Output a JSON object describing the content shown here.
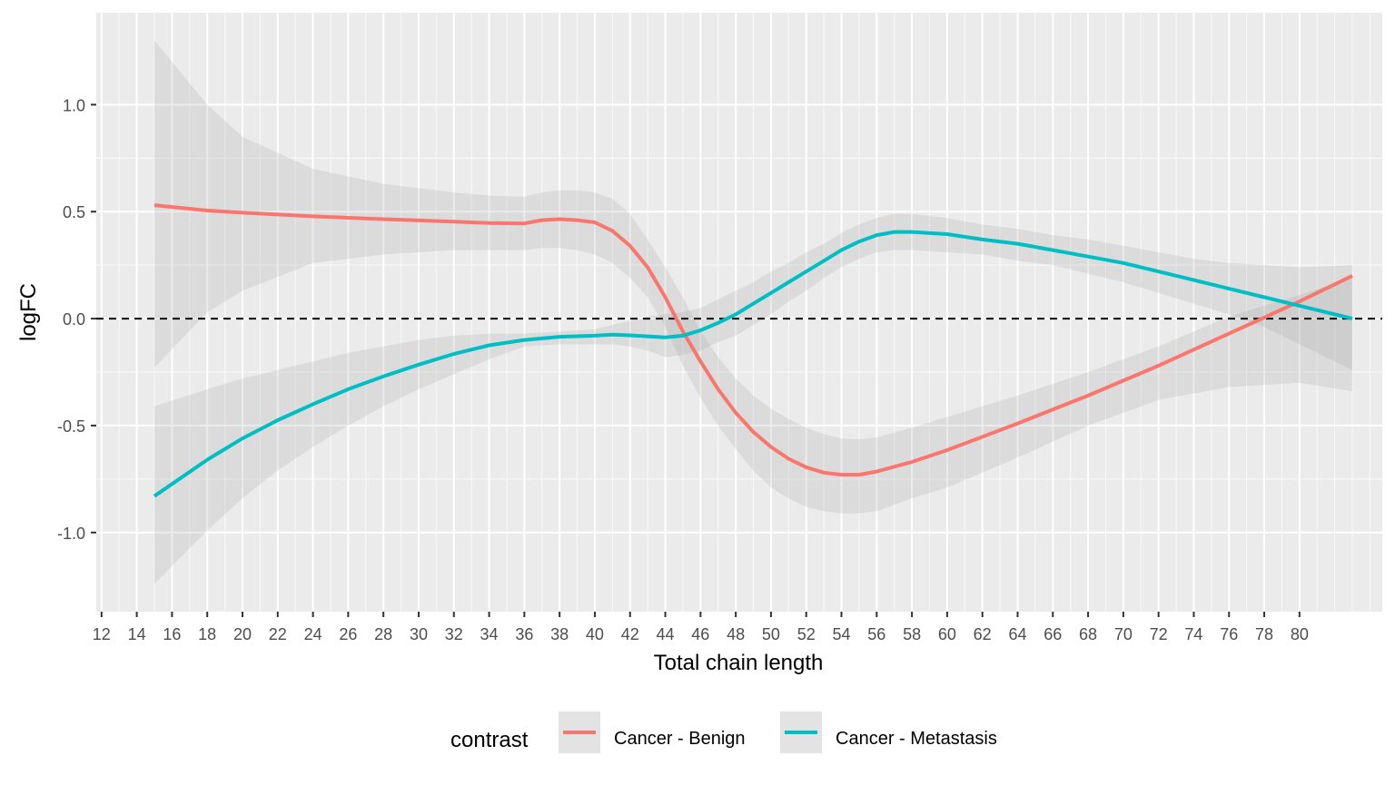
{
  "chart_data": {
    "type": "line",
    "xlabel": "Total chain length",
    "ylabel": "logFC",
    "xlim": [
      11.7,
      84.7
    ],
    "ylim": [
      -1.37,
      1.43
    ],
    "x_ticks": [
      "12",
      "14",
      "16",
      "18",
      "20",
      "22",
      "24",
      "26",
      "28",
      "30",
      "32",
      "34",
      "36",
      "38",
      "40",
      "42",
      "44",
      "46",
      "48",
      "50",
      "52",
      "54",
      "56",
      "58",
      "60",
      "62",
      "64",
      "66",
      "68",
      "70",
      "72",
      "74",
      "76",
      "78",
      "80"
    ],
    "y_ticks": [
      "1.0",
      "0.5",
      "0.0",
      "-0.5",
      "-1.0"
    ],
    "reference_line": {
      "y": 0,
      "style": "dashed"
    },
    "legend": {
      "title": "contrast",
      "position": "bottom"
    },
    "series": [
      {
        "name": "Cancer - Benign",
        "color": "#F8766D",
        "x": [
          15,
          18,
          20,
          24,
          28,
          32,
          34,
          36,
          37,
          38,
          39,
          40,
          41,
          42,
          43,
          44,
          45,
          46,
          47,
          48,
          49,
          50,
          51,
          52,
          53,
          54,
          55,
          56,
          58,
          60,
          64,
          68,
          72,
          76,
          80,
          83
        ],
        "y": [
          0.53,
          0.505,
          0.495,
          0.478,
          0.465,
          0.453,
          0.447,
          0.445,
          0.46,
          0.465,
          0.46,
          0.45,
          0.41,
          0.34,
          0.24,
          0.1,
          -0.06,
          -0.2,
          -0.33,
          -0.44,
          -0.53,
          -0.6,
          -0.655,
          -0.695,
          -0.72,
          -0.73,
          -0.73,
          -0.715,
          -0.67,
          -0.615,
          -0.49,
          -0.36,
          -0.22,
          -0.07,
          0.08,
          0.2
        ],
        "ci_upper": [
          1.3,
          1.0,
          0.85,
          0.7,
          0.63,
          0.59,
          0.575,
          0.57,
          0.59,
          0.6,
          0.6,
          0.59,
          0.56,
          0.49,
          0.37,
          0.24,
          0.1,
          -0.06,
          -0.18,
          -0.28,
          -0.36,
          -0.42,
          -0.47,
          -0.51,
          -0.54,
          -0.56,
          -0.565,
          -0.555,
          -0.51,
          -0.46,
          -0.36,
          -0.25,
          -0.13,
          0.01,
          0.11,
          0.19
        ],
        "ci_lower": [
          -0.23,
          0.03,
          0.13,
          0.26,
          0.3,
          0.32,
          0.32,
          0.32,
          0.33,
          0.33,
          0.32,
          0.3,
          0.26,
          0.19,
          0.1,
          -0.04,
          -0.22,
          -0.37,
          -0.5,
          -0.61,
          -0.71,
          -0.79,
          -0.84,
          -0.88,
          -0.9,
          -0.91,
          -0.91,
          -0.9,
          -0.84,
          -0.79,
          -0.65,
          -0.5,
          -0.38,
          -0.32,
          -0.3,
          -0.34
        ]
      },
      {
        "name": "Cancer - Metastasis",
        "color": "#00BFC4",
        "x": [
          15,
          18,
          20,
          22,
          24,
          26,
          28,
          30,
          32,
          34,
          36,
          38,
          40,
          41,
          42,
          43,
          44,
          45,
          46,
          47,
          48,
          49,
          50,
          51,
          52,
          53,
          54,
          55,
          56,
          57,
          58,
          60,
          62,
          64,
          66,
          68,
          70,
          72,
          74,
          76,
          78,
          80,
          83
        ],
        "y": [
          -0.83,
          -0.66,
          -0.56,
          -0.475,
          -0.4,
          -0.33,
          -0.27,
          -0.215,
          -0.165,
          -0.125,
          -0.1,
          -0.085,
          -0.08,
          -0.075,
          -0.078,
          -0.083,
          -0.088,
          -0.08,
          -0.055,
          -0.02,
          0.02,
          0.07,
          0.12,
          0.17,
          0.22,
          0.27,
          0.32,
          0.36,
          0.39,
          0.405,
          0.405,
          0.395,
          0.37,
          0.35,
          0.32,
          0.29,
          0.26,
          0.22,
          0.18,
          0.14,
          0.1,
          0.06,
          0.0
        ],
        "ci_upper": [
          -0.41,
          -0.33,
          -0.28,
          -0.24,
          -0.2,
          -0.16,
          -0.13,
          -0.1,
          -0.08,
          -0.07,
          -0.07,
          -0.06,
          -0.05,
          -0.03,
          -0.01,
          0.01,
          0.02,
          0.03,
          0.05,
          0.09,
          0.13,
          0.17,
          0.22,
          0.26,
          0.31,
          0.35,
          0.4,
          0.44,
          0.47,
          0.49,
          0.49,
          0.47,
          0.44,
          0.42,
          0.39,
          0.37,
          0.34,
          0.31,
          0.28,
          0.26,
          0.25,
          0.24,
          0.25
        ],
        "ci_lower": [
          -1.24,
          -0.99,
          -0.84,
          -0.71,
          -0.6,
          -0.5,
          -0.41,
          -0.33,
          -0.26,
          -0.19,
          -0.13,
          -0.12,
          -0.12,
          -0.12,
          -0.13,
          -0.15,
          -0.18,
          -0.17,
          -0.15,
          -0.11,
          -0.08,
          -0.03,
          0.02,
          0.08,
          0.13,
          0.19,
          0.24,
          0.28,
          0.31,
          0.32,
          0.32,
          0.31,
          0.3,
          0.27,
          0.25,
          0.21,
          0.17,
          0.12,
          0.07,
          0.02,
          -0.04,
          -0.12,
          -0.24
        ]
      }
    ]
  }
}
